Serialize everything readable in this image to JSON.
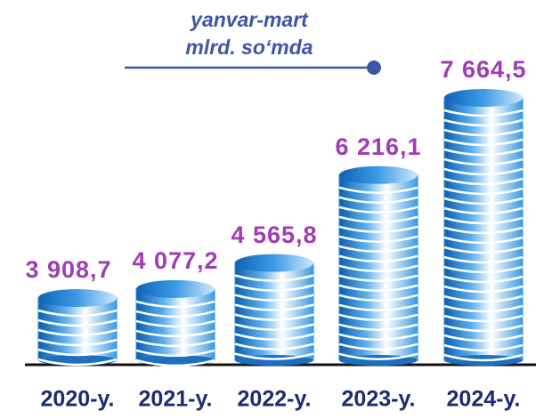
{
  "chart_data": {
    "type": "bar",
    "subtitle": [
      "yanvar-mart",
      "mlrd. so‘mda"
    ],
    "categories": [
      "2020-y.",
      "2021-y.",
      "2022-y.",
      "2023-y.",
      "2024-y."
    ],
    "values": [
      3908.7,
      4077.2,
      4565.8,
      6216.1,
      7664.5
    ],
    "value_labels": [
      "3 908,7",
      "4 077,2",
      "4 565,8",
      "6 216,1",
      "7 664,5"
    ],
    "color": "#2f8fd8",
    "label_color": "#a03cb4"
  }
}
